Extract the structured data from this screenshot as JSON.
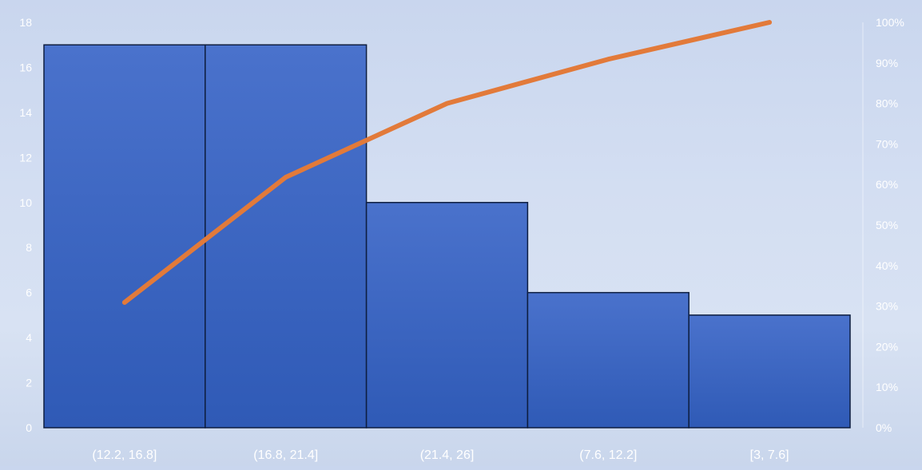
{
  "chart_data": {
    "type": "bar",
    "chart_subtype": "pareto",
    "categories": [
      "(12.2, 16.8]",
      "(16.8, 21.4]",
      "(21.4, 26]",
      "(7.6, 12.2]",
      "[3, 7.6]"
    ],
    "series": [
      {
        "values": [
          17,
          17,
          10,
          6,
          5
        ],
        "kind": "bar",
        "axis": "primary"
      },
      {
        "values": [
          0.309,
          0.618,
          0.8,
          0.909,
          1.0
        ],
        "kind": "line",
        "axis": "secondary"
      }
    ],
    "primary_axis": {
      "ylim": [
        0,
        18
      ],
      "ticks": [
        "0",
        "2",
        "4",
        "6",
        "8",
        "10",
        "12",
        "14",
        "16",
        "18"
      ]
    },
    "secondary_axis": {
      "ylim": [
        0,
        1
      ],
      "ticks": [
        "0%",
        "10%",
        "20%",
        "30%",
        "40%",
        "50%",
        "60%",
        "70%",
        "80%",
        "90%",
        "100%"
      ]
    },
    "title": "",
    "xlabel": "",
    "ylabel": "",
    "legend": "none",
    "grid": false,
    "colors": {
      "bar_fill": "#3a64c2",
      "bar_stroke": "#0e1e40",
      "line": "#e27a3a",
      "tick_text": "#ffffff"
    }
  }
}
